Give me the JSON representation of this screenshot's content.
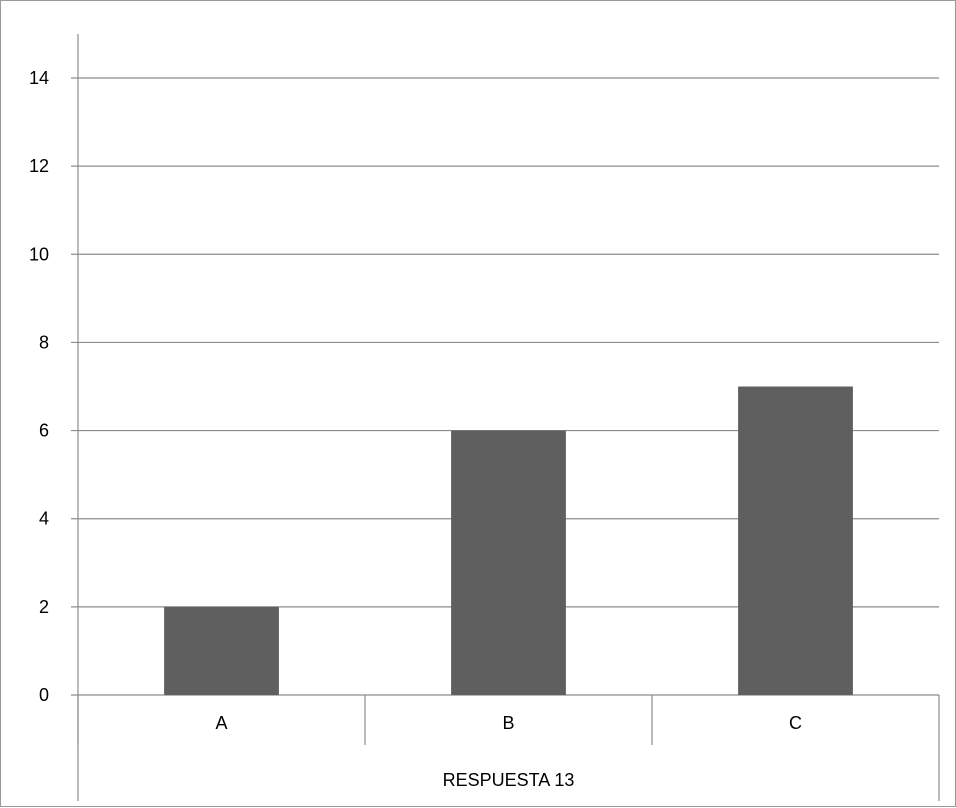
{
  "chart_data": {
    "type": "bar",
    "categories": [
      "A",
      "B",
      "C"
    ],
    "series": [
      {
        "values": [
          2,
          6,
          7
        ]
      }
    ],
    "group_label": "RESPUESTA 13",
    "title": "",
    "xlabel": "",
    "ylabel": "",
    "ylim": [
      0,
      14
    ],
    "yticks": [
      0,
      2,
      4,
      6,
      8,
      10,
      12,
      14
    ],
    "grid": true,
    "legend": "none",
    "colors": {
      "bar": "#5f5f5f",
      "grid": "#8c8c8c",
      "axis": "#8c8c8c"
    }
  }
}
